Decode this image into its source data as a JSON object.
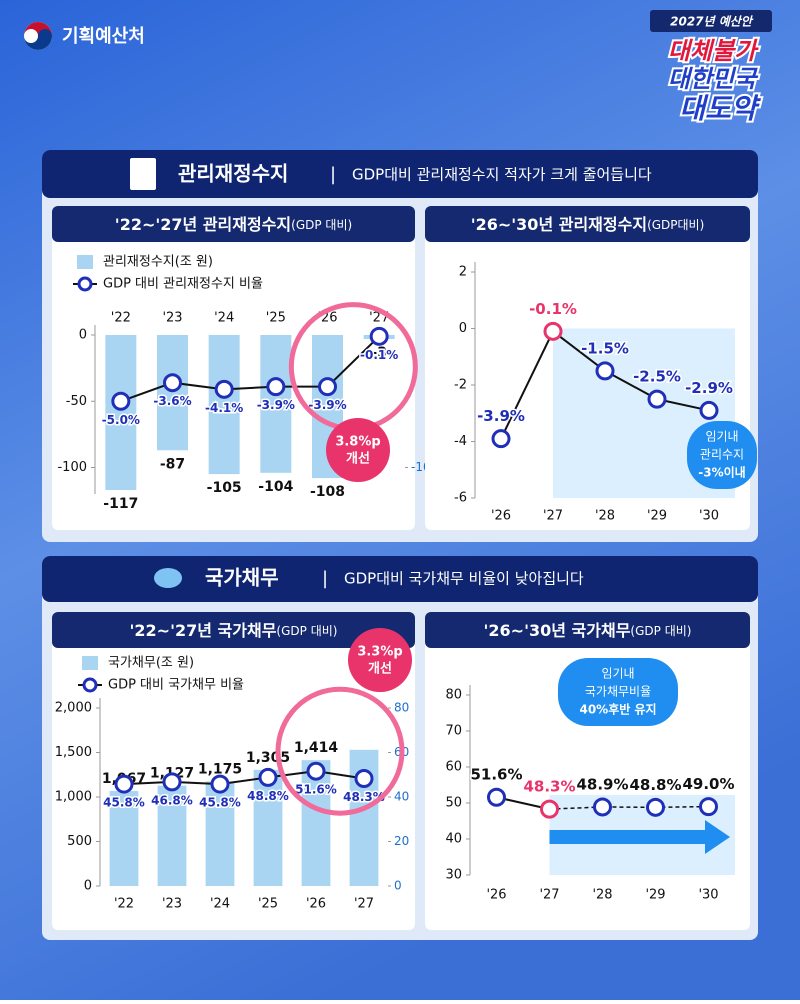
{
  "header": {
    "agency": "기획예산처",
    "badge": "2027년 예산안",
    "slogan": [
      "대체불가",
      "대한민국",
      "대도약"
    ]
  },
  "sections": [
    {
      "title": "관리재정수지",
      "subtitle": "GDP대비 관리재정수지 적자가 크게 줄어듭니다"
    },
    {
      "title": "국가채무",
      "subtitle": "GDP대비 국가채무 비율이 낮아집니다"
    }
  ],
  "chart_data": [
    {
      "type": "bar-line",
      "title": "'22~'27년 관리재정수지",
      "title_note": "(GDP 대비)",
      "categories": [
        "'22",
        "'23",
        "'24",
        "'25",
        "'26",
        "'27"
      ],
      "series": [
        {
          "name": "관리재정수지(조 원)",
          "color": "#a9d5f3",
          "values": [
            -117,
            -87,
            -105,
            -104,
            -108,
            -3
          ]
        },
        {
          "name": "GDP 대비 관리재정수지 비율",
          "color": "#1f2fb8",
          "axis": "y2",
          "values": [
            -5.0,
            -3.6,
            -4.1,
            -3.9,
            -3.9,
            -0.1
          ],
          "value_labels": [
            "-5.0%",
            "-3.6%",
            "-4.1%",
            "-3.9%",
            "-3.9%",
            "-0.1%"
          ]
        }
      ],
      "ylim": [
        -120,
        0
      ],
      "yticks": [
        0,
        -50,
        -100
      ],
      "y2lim": [
        -12,
        0
      ],
      "y2ticks": [
        -10
      ],
      "annotation": [
        "3.8%p",
        "개선"
      ]
    },
    {
      "type": "line",
      "title": "'26~'30년 관리재정수지",
      "title_note": "(GDP대비)",
      "categories": [
        "'26",
        "'27",
        "'28",
        "'29",
        "'30"
      ],
      "values": [
        -3.9,
        -0.1,
        -1.5,
        -2.5,
        -2.9
      ],
      "value_labels": [
        "-3.9%",
        "-0.1%",
        "-1.5%",
        "-2.5%",
        "-2.9%"
      ],
      "color": "#1f2fb8",
      "ylim": [
        -6,
        2
      ],
      "yticks": [
        2,
        0,
        -2,
        -4,
        -6
      ],
      "annotation": [
        "임기내",
        "관리수지",
        "-3%이내"
      ]
    },
    {
      "type": "bar-line",
      "title": "'22~'27년 국가채무",
      "title_note": "(GDP 대비)",
      "categories": [
        "'22",
        "'23",
        "'24",
        "'25",
        "'26",
        "'27"
      ],
      "series": [
        {
          "name": "국가채무(조 원)",
          "color": "#a9d5f3",
          "values": [
            1067,
            1127,
            1175,
            1305,
            1414,
            1530
          ],
          "value_labels": [
            "1,067",
            "1,127",
            "1,175",
            "1,305",
            "1,414",
            null
          ]
        },
        {
          "name": "GDP 대비 국가채무 비율",
          "color": "#1f2fb8",
          "axis": "y2",
          "values": [
            45.8,
            46.8,
            45.8,
            48.8,
            51.6,
            48.3
          ],
          "value_labels": [
            "45.8%",
            "46.8%",
            "45.8%",
            "48.8%",
            "51.6%",
            "48.3%"
          ]
        }
      ],
      "ylim": [
        0,
        2000
      ],
      "yticks": [
        {
          "value": 2000,
          "label": "2,000"
        },
        {
          "value": 1500,
          "label": "1,500"
        },
        {
          "value": 1000,
          "label": "1,000"
        },
        500,
        0
      ],
      "y2lim": [
        0,
        80
      ],
      "y2ticks": [
        80,
        60,
        40,
        20,
        0
      ],
      "annotation": [
        "3.3%p",
        "개선"
      ]
    },
    {
      "type": "line",
      "title": "'26~'30년 국가채무",
      "title_note": "(GDP 대비)",
      "categories": [
        "'26",
        "'27",
        "'28",
        "'29",
        "'30"
      ],
      "values": [
        51.6,
        48.3,
        48.9,
        48.8,
        49.0
      ],
      "value_labels": [
        "51.6%",
        "48.3%",
        "48.9%",
        "48.8%",
        "49.0%"
      ],
      "color": "#1f2fb8",
      "ylim": [
        30,
        80
      ],
      "yticks": [
        80,
        70,
        60,
        50,
        40,
        30
      ],
      "annotation": [
        "임기내",
        "국가채무비율",
        "40%후반 유지"
      ]
    }
  ]
}
